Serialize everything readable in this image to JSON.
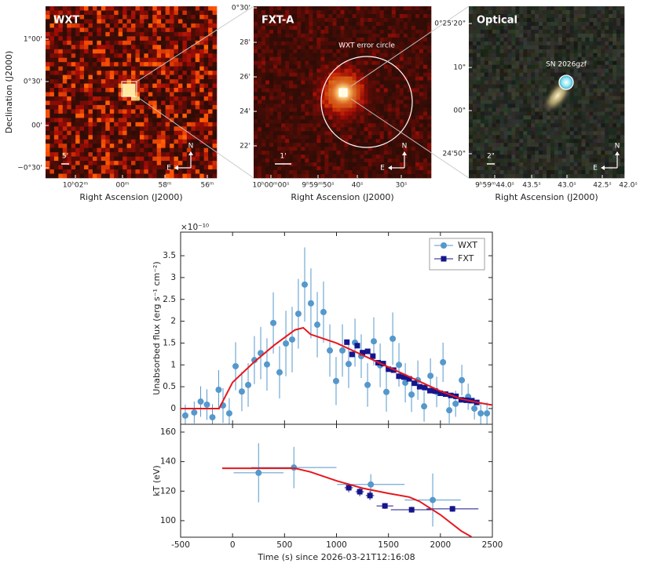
{
  "chart_data": [
    {
      "type": "image",
      "title": "WXT",
      "xlabel": "Right Ascension (J2000)",
      "ylabel": "Declination (J2000)",
      "xtick_labels": [
        "10ʰ02ᵐ",
        "00ᵐ",
        "58ᵐ",
        "56ᵐ"
      ],
      "ytick_labels": [
        "1°00'",
        "0°30'",
        "00'",
        "−0°30'"
      ],
      "scale_bar": "5'",
      "compass": [
        "N",
        "E"
      ]
    },
    {
      "type": "image",
      "title": "FXT-A",
      "xlabel": "Right Ascension (J2000)",
      "xtick_labels": [
        "10ʰ00ᵐ00ˢ",
        "9ʰ59ᵐ50ˢ",
        "40ˢ",
        "30ˢ"
      ],
      "ytick_labels": [
        "0°30'",
        "28'",
        "26'",
        "24'",
        "22'"
      ],
      "annotation": "WXT error circle",
      "scale_bar": "1'",
      "compass": [
        "N",
        "E"
      ]
    },
    {
      "type": "image",
      "title": "Optical",
      "xlabel": "Right Ascension (J2000)",
      "xtick_labels": [
        "9ʰ59ᵐ44.0ˢ",
        "43.5ˢ",
        "43.0ˢ",
        "42.5ˢ",
        "42.0ˢ"
      ],
      "ytick_labels": [
        "0°25'20\"",
        "10\"",
        "00\"",
        "24'50\""
      ],
      "annotation": "SN 2026gzf",
      "scale_bar": "2\"",
      "compass": [
        "N",
        "E"
      ]
    },
    {
      "type": "errorbar",
      "ylabel": "Unabsorbed flux (erg s⁻¹ cm⁻²)",
      "y_multiplier": "×10⁻¹⁰",
      "xlim": [
        -500,
        2500
      ],
      "ylim": [
        -0.36,
        4.04
      ],
      "yticks": [
        0,
        0.5,
        1,
        1.5,
        2,
        2.5,
        3,
        3.5
      ],
      "grid": false,
      "legend": "upper right",
      "series": [
        {
          "name": "WXT",
          "color": "#5598cc",
          "marker": "circle",
          "x": [
            -455,
            -369,
            -307,
            -247,
            -194,
            -134,
            -92,
            -32,
            29,
            89,
            150,
            210,
            271,
            331,
            392,
            452,
            513,
            573,
            633,
            694,
            754,
            815,
            875,
            936,
            996,
            1057,
            1117,
            1178,
            1238,
            1299,
            1359,
            1420,
            1480,
            1541,
            1601,
            1662,
            1722,
            1783,
            1843,
            1904,
            1964,
            2025,
            2085,
            2146,
            2206,
            2267,
            2327,
            2388,
            2448
          ],
          "values": [
            -0.16,
            -0.09,
            0.16,
            0.09,
            -0.2,
            0.43,
            0.07,
            -0.11,
            0.97,
            0.39,
            0.54,
            1.11,
            1.27,
            1.01,
            1.96,
            0.83,
            1.49,
            1.58,
            2.17,
            2.84,
            2.41,
            1.92,
            2.21,
            1.33,
            0.63,
            1.33,
            1.02,
            1.51,
            1.2,
            0.54,
            1.54,
            0.99,
            0.38,
            1.6,
            1.0,
            0.59,
            0.32,
            0.65,
            0.05,
            0.75,
            0.38,
            1.06,
            -0.04,
            0.11,
            0.65,
            0.27,
            0.0,
            -0.11,
            -0.11
          ],
          "yerr": [
            0.25,
            0.25,
            0.35,
            0.35,
            0.3,
            0.45,
            0.4,
            0.35,
            0.55,
            0.45,
            0.5,
            0.55,
            0.6,
            0.6,
            0.7,
            0.6,
            0.75,
            0.75,
            0.8,
            0.85,
            0.8,
            0.75,
            0.7,
            0.6,
            0.55,
            0.6,
            0.55,
            0.55,
            0.5,
            0.5,
            0.55,
            0.5,
            0.45,
            0.6,
            0.5,
            0.45,
            0.4,
            0.45,
            0.35,
            0.4,
            0.35,
            0.45,
            0.3,
            0.3,
            0.35,
            0.3,
            0.25,
            0.25,
            0.25
          ]
        },
        {
          "name": "FXT",
          "color": "#15158c",
          "marker": "square",
          "x": [
            1100,
            1150,
            1200,
            1250,
            1300,
            1350,
            1400,
            1450,
            1500,
            1550,
            1600,
            1650,
            1700,
            1750,
            1800,
            1850,
            1900,
            1950,
            2000,
            2050,
            2100,
            2150,
            2200,
            2250,
            2300,
            2350
          ],
          "values": [
            1.52,
            1.24,
            1.44,
            1.28,
            1.31,
            1.2,
            1.05,
            1.03,
            0.9,
            0.88,
            0.74,
            0.72,
            0.68,
            0.58,
            0.5,
            0.48,
            0.41,
            0.4,
            0.35,
            0.33,
            0.3,
            0.28,
            0.2,
            0.19,
            0.18,
            0.14
          ],
          "xerr": [
            25,
            25,
            25,
            25,
            25,
            25,
            25,
            25,
            25,
            25,
            25,
            25,
            25,
            25,
            25,
            25,
            25,
            25,
            25,
            25,
            25,
            25,
            25,
            25,
            25,
            25
          ],
          "yerr": [
            0.06,
            0.06,
            0.06,
            0.06,
            0.06,
            0.05,
            0.05,
            0.05,
            0.05,
            0.05,
            0.05,
            0.05,
            0.05,
            0.04,
            0.04,
            0.04,
            0.04,
            0.04,
            0.04,
            0.04,
            0.04,
            0.04,
            0.04,
            0.04,
            0.04,
            0.04
          ]
        },
        {
          "color": "#e8161c",
          "marker": "none",
          "x": [
            -500,
            -130,
            0,
            200,
            400,
            600,
            680,
            750,
            1000,
            1500,
            2000,
            2200,
            2400,
            2500
          ],
          "values": [
            0,
            0,
            0.6,
            1.05,
            1.45,
            1.8,
            1.85,
            1.7,
            1.5,
            0.95,
            0.4,
            0.22,
            0.12,
            0.08
          ]
        }
      ]
    },
    {
      "type": "errorbar",
      "xlabel": "Time (s) since 2026-03-21T12:16:08",
      "ylabel": "kT (eV)",
      "xlim": [
        -500,
        2500
      ],
      "xticks": [
        -500,
        0,
        500,
        1000,
        1500,
        2000,
        2500
      ],
      "ylim": [
        88.8,
        165.3
      ],
      "yticks": [
        100,
        120,
        140,
        160
      ],
      "grid": false,
      "series": [
        {
          "color": "#5598cc",
          "marker": "circle",
          "x": [
            250,
            590,
            1330,
            1926
          ],
          "values": [
            132.4,
            136,
            124.5,
            114
          ],
          "xerr": [
            240,
            410,
            325,
            270
          ],
          "yerr": [
            20,
            14,
            7,
            18
          ]
        },
        {
          "color": "#15158c",
          "marker": "square",
          "x": [
            1118,
            1224,
            1322,
            1466,
            1723,
            2116
          ],
          "values": [
            122.3,
            119.6,
            117,
            110,
            107.4,
            108
          ],
          "xerr": [
            40,
            40,
            40,
            80,
            200,
            250
          ],
          "yerr": [
            3,
            3,
            3,
            2,
            2,
            2
          ]
        },
        {
          "color": "#e8161c",
          "marker": "none",
          "x": [
            -100,
            600,
            750,
            1000,
            1250,
            1500,
            1700,
            1800,
            2000,
            2200,
            2300
          ],
          "values": [
            135.5,
            135.5,
            133,
            127,
            122,
            118.5,
            116,
            113,
            104,
            93,
            89
          ]
        }
      ]
    }
  ]
}
